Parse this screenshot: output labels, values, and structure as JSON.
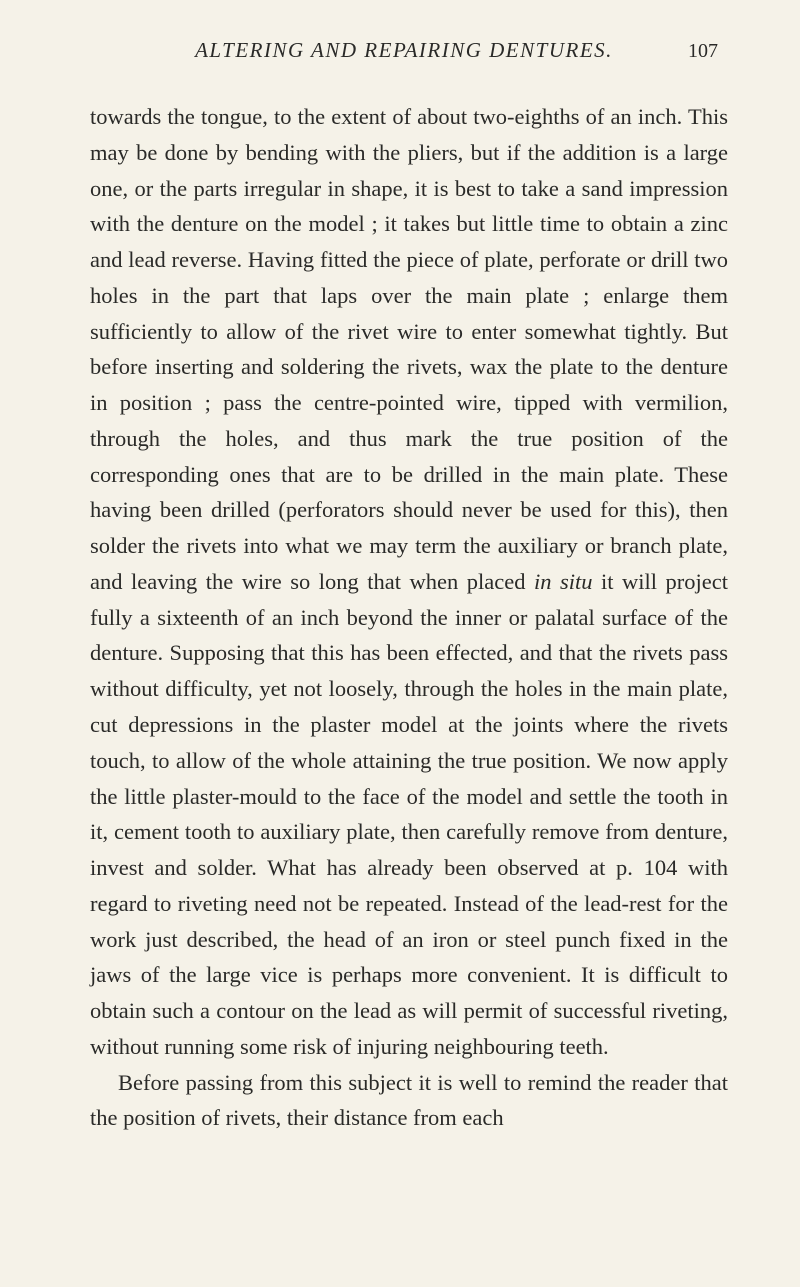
{
  "page": {
    "header_title": "ALTERING AND REPAIRING DENTURES.",
    "page_number": "107",
    "paragraph1_a": "towards the tongue, to the extent of about two-eighths of an inch. This may be done by bending with the pliers, but if the addition is a large one, or the parts irregular in shape, it is best to take a sand impression with the denture on the model ; it takes but little time to obtain a zinc and lead reverse. Having fitted the piece of plate, perforate or drill two holes in the part that laps over the main plate ; enlarge them sufficiently to allow of the rivet wire to enter somewhat tightly. But before inserting and soldering the rivets, wax the plate to the denture in position ; pass the centre-pointed wire, tipped with vermilion, through the holes, and thus mark the true position of the corresponding ones that are to be drilled in the main plate. These having been drilled (perforators should never be used for this), then solder the rivets into what we may term the auxiliary or branch plate, and leaving the wire so long that when placed ",
    "paragraph1_italic": "in situ",
    "paragraph1_b": " it will project fully a sixteenth of an inch beyond the inner or palatal surface of the denture. Supposing that this has been effected, and that the rivets pass without difficulty, yet not loosely, through the holes in the main plate, cut depressions in the plaster model at the joints where the rivets touch, to allow of the whole attaining the true position. We now apply the little plaster-mould to the face of the model and settle the tooth in it, cement tooth to auxiliary plate, then carefully remove from denture, invest and solder. What has already been observed at p. 104 with regard to riveting need not be repeated. Instead of the lead-rest for the work just described, the head of an iron or steel punch fixed in the jaws of the large vice is perhaps more convenient. It is difficult to obtain such a contour on the lead as will permit of successful riveting, without running some risk of injuring neighbouring teeth.",
    "paragraph2": "Before passing from this subject it is well to remind the reader that the position of rivets, their distance from each"
  },
  "colors": {
    "background": "#f5f2e8",
    "text": "#2a2a28"
  },
  "typography": {
    "body_fontsize": 22.5,
    "body_lineheight": 1.59,
    "header_fontsize": 21,
    "font_family": "Times New Roman"
  }
}
